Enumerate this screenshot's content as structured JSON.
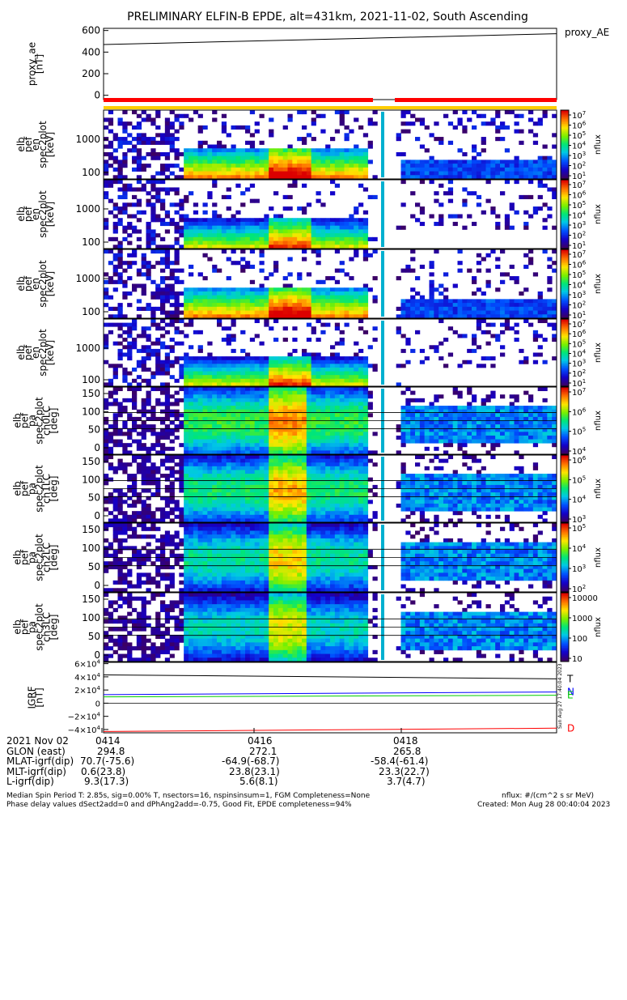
{
  "title": "PRELIMINARY ELFIN-B EPDE, alt=431km, 2021-11-02, South Ascending",
  "chart_data": [
    {
      "type": "line",
      "panel": "proxy_ae",
      "ylabel": "proxy_ae\n[nT]",
      "series_label": "proxy_AE",
      "yticks": [
        "600",
        "400",
        "200",
        "0"
      ],
      "ylim": [
        -40,
        620
      ],
      "series": [
        {
          "name": "proxy_AE",
          "x": [
            0,
            1
          ],
          "values": [
            470,
            570
          ]
        }
      ]
    },
    {
      "type": "heatmap",
      "panel": "spec",
      "ylabel": "elb\npef\nen\nspec2plot\n[keV]",
      "yticks": [
        "1000",
        "100"
      ],
      "colorbar": "nflux",
      "cbar_ticks": [
        "10^7",
        "10^6",
        "10^5",
        "10^4",
        "10^3",
        "10^2",
        "10^1"
      ]
    },
    {
      "type": "heatmap",
      "panel": "spec",
      "ylabel": "elb\npef\nen\nspec2plot\n[keV]",
      "yticks": [
        "1000",
        "100"
      ],
      "colorbar": "nflux",
      "cbar_ticks": [
        "10^7",
        "10^6",
        "10^5",
        "10^4",
        "10^3",
        "10^2",
        "10^1"
      ]
    },
    {
      "type": "heatmap",
      "panel": "spec",
      "ylabel": "elb\npef\nen\nspec2plot\n[keV]",
      "yticks": [
        "1000",
        "100"
      ],
      "colorbar": "nflux",
      "cbar_ticks": [
        "10^7",
        "10^6",
        "10^5",
        "10^4",
        "10^3",
        "10^2",
        "10^1"
      ]
    },
    {
      "type": "heatmap",
      "panel": "spec",
      "ylabel": "elb\npef\nen\nspec2plot\n[keV]",
      "yticks": [
        "1000",
        "100"
      ],
      "colorbar": "nflux",
      "cbar_ticks": [
        "10^7",
        "10^6",
        "10^5",
        "10^4",
        "10^3",
        "10^2",
        "10^1"
      ]
    },
    {
      "type": "heatmap",
      "panel": "pa",
      "ylabel": "elb\npef\npa\nspec2plot\nch0LC\n[deg]",
      "yticks": [
        "150",
        "100",
        "50",
        "0"
      ],
      "colorbar": "nflux",
      "cbar_ticks": [
        "10^7",
        "10^6",
        "10^5",
        "10^4"
      ]
    },
    {
      "type": "heatmap",
      "panel": "pa",
      "ylabel": "elb\npef\npa\nspec2plot\nch1LC\n[deg]",
      "yticks": [
        "150",
        "100",
        "50",
        "0"
      ],
      "colorbar": "nflux",
      "cbar_ticks": [
        "10^6",
        "10^5",
        "10^4",
        "10^3"
      ]
    },
    {
      "type": "heatmap",
      "panel": "pa",
      "ylabel": "elb\npef\npa\nspec2plot\nch2LC\n[deg]",
      "yticks": [
        "150",
        "100",
        "50",
        "0"
      ],
      "colorbar": "nflux",
      "cbar_ticks": [
        "10^5",
        "10^4",
        "10^3",
        "10^2"
      ]
    },
    {
      "type": "heatmap",
      "panel": "pa",
      "ylabel": "elb\npef\npa\nspec2plot\nch3LC\n[deg]",
      "yticks": [
        "150",
        "100",
        "50",
        "0"
      ],
      "colorbar": "nflux",
      "cbar_ticks": [
        "10000",
        "1000",
        "100",
        "10"
      ]
    },
    {
      "type": "line",
      "panel": "igrf",
      "ylabel": "IGRF\n[nT]",
      "yticks": [
        "6×10^4",
        "4×10^4",
        "2×10^4",
        "0",
        "−2×10^4",
        "−4×10^4"
      ],
      "ylim": [
        -45000,
        62000
      ],
      "series": [
        {
          "name": "T",
          "color": "#000000",
          "x": [
            0,
            1
          ],
          "values": [
            43000,
            37000
          ]
        },
        {
          "name": "N",
          "color": "#0000ff",
          "x": [
            0,
            1
          ],
          "values": [
            13000,
            17000
          ]
        },
        {
          "name": "E",
          "color": "#00cc00",
          "x": [
            0,
            1
          ],
          "values": [
            9500,
            12000
          ]
        },
        {
          "name": "D",
          "color": "#ff0000",
          "x": [
            0,
            1
          ],
          "values": [
            -43000,
            -38000
          ]
        }
      ]
    }
  ],
  "xaxis": {
    "ticks": [
      "0414",
      "0416",
      "0418"
    ],
    "rows": [
      {
        "label": "2021 Nov 02",
        "values": [
          "0414",
          "0416",
          "0418"
        ]
      },
      {
        "label": "GLON (east)",
        "values": [
          "294.8",
          "272.1",
          "265.8"
        ]
      },
      {
        "label": "MLAT-igrf(dip)",
        "values": [
          "70.7(-75.6)",
          "-64.9(-68.7)",
          "-58.4(-61.4)"
        ]
      },
      {
        "label": "MLT-igrf(dip)",
        "values": [
          "0.6(23.8)",
          "23.8(23.1)",
          "23.3(22.7)"
        ]
      },
      {
        "label": "L-igrf(dip)",
        "values": [
          "9.3(17.3)",
          "5.6(8.1)",
          "3.7(4.7)"
        ]
      }
    ]
  },
  "footer": {
    "line1": "Median Spin Period T: 2.85s, sig=0.00% T, nsectors=16, nspinsinsum=1, FGM Completeness=None",
    "line2": "Phase delay values dSect2add=0 and dPhAng2add=-0.75, Good Fit, EPDE completeness=94%",
    "units": "nflux: #/(cm^2 s sr MeV)",
    "created": "Created: Mon Aug 28 00:40:04 2023",
    "side_stamp": "Sun Aug 27 17:40:04 2023"
  }
}
